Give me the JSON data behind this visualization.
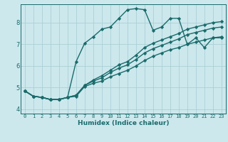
{
  "xlabel": "Humidex (Indice chaleur)",
  "bg_color": "#cce8ed",
  "grid_color": "#aacfd6",
  "line_color": "#1a6b6b",
  "marker": "D",
  "markersize": 2.2,
  "linewidth": 1.0,
  "xlim": [
    -0.5,
    23.5
  ],
  "ylim": [
    3.8,
    8.85
  ],
  "xticks": [
    0,
    1,
    2,
    3,
    4,
    5,
    6,
    7,
    8,
    9,
    10,
    11,
    12,
    13,
    14,
    15,
    16,
    17,
    18,
    19,
    20,
    21,
    22,
    23
  ],
  "yticks": [
    4,
    5,
    6,
    7,
    8
  ],
  "series": [
    [
      4.85,
      4.6,
      4.55,
      4.45,
      4.45,
      4.55,
      4.6,
      5.05,
      5.2,
      5.3,
      5.5,
      5.65,
      5.8,
      6.0,
      6.25,
      6.45,
      6.6,
      6.75,
      6.85,
      7.0,
      7.1,
      7.2,
      7.3,
      7.35
    ],
    [
      4.85,
      4.6,
      4.55,
      4.45,
      4.45,
      4.55,
      4.65,
      5.1,
      5.3,
      5.45,
      5.7,
      5.9,
      6.05,
      6.3,
      6.6,
      6.8,
      6.95,
      7.1,
      7.25,
      7.45,
      7.55,
      7.65,
      7.75,
      7.8
    ],
    [
      4.85,
      4.6,
      4.55,
      4.45,
      4.45,
      4.55,
      4.65,
      5.1,
      5.35,
      5.55,
      5.8,
      6.05,
      6.2,
      6.5,
      6.85,
      7.05,
      7.2,
      7.35,
      7.5,
      7.7,
      7.8,
      7.9,
      8.0,
      8.05
    ],
    [
      4.85,
      4.6,
      4.55,
      4.45,
      4.45,
      4.55,
      6.2,
      7.05,
      7.35,
      7.7,
      7.8,
      8.2,
      8.6,
      8.65,
      8.6,
      7.65,
      7.8,
      8.2,
      8.2,
      7.0,
      7.3,
      6.85,
      7.3,
      7.3
    ]
  ]
}
